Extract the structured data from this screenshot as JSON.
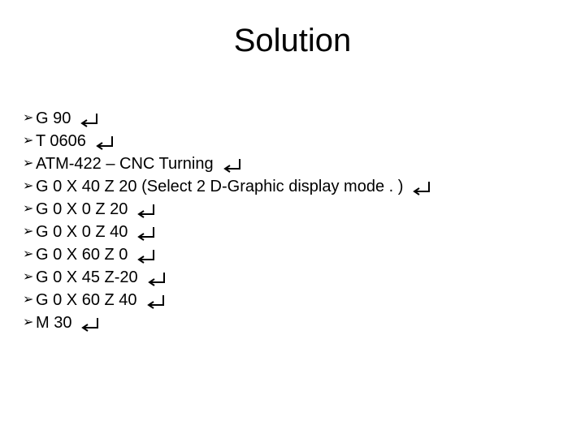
{
  "title": "Solution",
  "bullet_glyph": "➢",
  "colors": {
    "text": "#000000",
    "background": "#ffffff",
    "enter_symbol": "#000000"
  },
  "typography": {
    "title_fontsize": 40,
    "body_fontsize": 20,
    "font_family": "Arial"
  },
  "items": [
    {
      "text": "G 90",
      "show_enter": true
    },
    {
      "text": "T 0606",
      "show_enter": true
    },
    {
      "text": "ATM-422 – CNC Turning",
      "show_enter": true
    },
    {
      "text": "G 0 X 40 Z 20 (Select 2 D-Graphic display mode . )",
      "show_enter": true
    },
    {
      "text": "G 0 X 0 Z 20",
      "show_enter": true
    },
    {
      "text": "G 0 X 0 Z 40",
      "show_enter": true
    },
    {
      "text": "G 0 X 60 Z 0",
      "show_enter": true
    },
    {
      "text": "G 0 X 45 Z-20",
      "show_enter": true
    },
    {
      "text": "G 0 X 60 Z 40",
      "show_enter": true
    },
    {
      "text": "M 30",
      "show_enter": true
    }
  ],
  "enter_symbol": {
    "width": 26,
    "height": 20,
    "stroke": "#000000",
    "stroke_width": 2
  }
}
